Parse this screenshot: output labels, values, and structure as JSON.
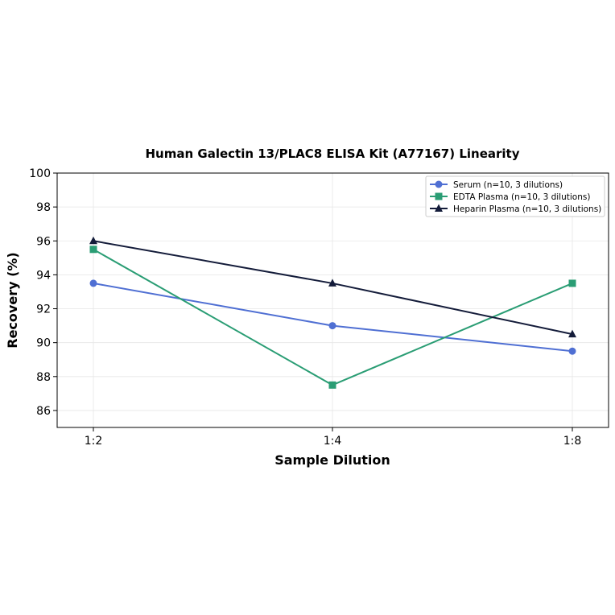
{
  "chart_data": {
    "type": "line",
    "title": "Human Galectin 13/PLAC8 ELISA Kit (A77167) Linearity",
    "xlabel": "Sample Dilution",
    "ylabel": "Recovery (%)",
    "categories": [
      "1:2",
      "1:4",
      "1:8"
    ],
    "ylim": [
      85,
      100
    ],
    "yticks": [
      86,
      88,
      90,
      92,
      94,
      96,
      98,
      100
    ],
    "grid": true,
    "legend_position": "top-right",
    "series": [
      {
        "name": "Serum (n=10, 3 dilutions)",
        "values": [
          93.5,
          91.0,
          89.5
        ],
        "color": "#4f6fd3",
        "marker": "circle"
      },
      {
        "name": "EDTA Plasma (n=10, 3 dilutions)",
        "values": [
          95.5,
          87.5,
          93.5
        ],
        "color": "#2a9d74",
        "marker": "square"
      },
      {
        "name": "Heparin Plasma (n=10, 3 dilutions)",
        "values": [
          96.0,
          93.5,
          90.5
        ],
        "color": "#141c3a",
        "marker": "triangle"
      }
    ]
  }
}
